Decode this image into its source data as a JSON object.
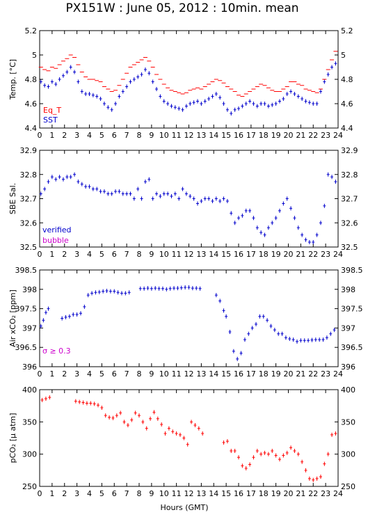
{
  "title": "PX151W : June 05, 2012 : 10min. mean",
  "xlabel": "Hours (GMT)",
  "colors": {
    "eq_t": "#ff0000",
    "sst": "#0000cc",
    "salinity": "#0000cc",
    "xco2": "#0000cc",
    "pco2": "#ff0000",
    "bubble": "#cc00cc",
    "axis": "#000000"
  },
  "chart_data": [
    {
      "id": "temp",
      "type": "scatter",
      "ylabel": "Temp. [°C]",
      "ylim": [
        4.4,
        5.2
      ],
      "yticks": [
        "4.4",
        "4.6",
        "4.8",
        "5",
        "5.2"
      ],
      "xlim": [
        0,
        24
      ],
      "xticks": [
        "0",
        "1",
        "2",
        "3",
        "4",
        "5",
        "6",
        "7",
        "8",
        "9",
        "10",
        "11",
        "12",
        "13",
        "14",
        "15",
        "16",
        "17",
        "18",
        "19",
        "20",
        "21",
        "22",
        "23",
        "24"
      ],
      "legend": [
        "Eq_T",
        "SST"
      ],
      "series": [
        {
          "name": "Eq_T",
          "marker": "dash",
          "color_key": "eq_t",
          "x": [
            0.1,
            0.4,
            0.7,
            1.0,
            1.3,
            1.6,
            1.9,
            2.2,
            2.5,
            2.8,
            3.1,
            3.4,
            3.7,
            4.0,
            4.3,
            4.6,
            4.9,
            5.2,
            5.5,
            5.8,
            6.1,
            6.4,
            6.7,
            7.0,
            7.3,
            7.6,
            7.9,
            8.2,
            8.5,
            8.8,
            9.1,
            9.4,
            9.7,
            10.0,
            10.3,
            10.6,
            10.9,
            11.2,
            11.5,
            11.8,
            12.1,
            12.4,
            12.7,
            13.0,
            13.3,
            13.6,
            13.9,
            14.2,
            14.5,
            14.8,
            15.1,
            15.4,
            15.7,
            16.0,
            16.3,
            16.6,
            16.9,
            17.2,
            17.5,
            17.8,
            18.1,
            18.4,
            18.7,
            19.0,
            19.3,
            19.6,
            19.9,
            20.2,
            20.5,
            20.8,
            21.1,
            21.4,
            21.7,
            22.0,
            22.3,
            22.6,
            22.9,
            23.2,
            23.5,
            23.8
          ],
          "y": [
            4.9,
            4.88,
            4.87,
            4.9,
            4.89,
            4.92,
            4.95,
            4.97,
            5.0,
            4.98,
            4.92,
            4.86,
            4.82,
            4.8,
            4.8,
            4.79,
            4.78,
            4.74,
            4.72,
            4.7,
            4.71,
            4.75,
            4.8,
            4.85,
            4.9,
            4.92,
            4.94,
            4.96,
            4.98,
            4.95,
            4.9,
            4.84,
            4.8,
            4.76,
            4.73,
            4.71,
            4.7,
            4.69,
            4.68,
            4.69,
            4.71,
            4.72,
            4.73,
            4.72,
            4.74,
            4.76,
            4.78,
            4.8,
            4.79,
            4.77,
            4.74,
            4.72,
            4.7,
            4.67,
            4.66,
            4.68,
            4.7,
            4.72,
            4.74,
            4.76,
            4.75,
            4.73,
            4.71,
            4.7,
            4.7,
            4.72,
            4.74,
            4.78,
            4.78,
            4.76,
            4.75,
            4.72,
            4.71,
            4.7,
            4.69,
            4.72,
            4.8,
            4.88,
            4.96,
            5.03
          ]
        },
        {
          "name": "SST",
          "marker": "plus",
          "color_key": "sst",
          "x": [
            0.1,
            0.4,
            0.7,
            1.0,
            1.3,
            1.6,
            1.9,
            2.2,
            2.5,
            2.8,
            3.1,
            3.4,
            3.7,
            4.0,
            4.3,
            4.6,
            4.9,
            5.2,
            5.5,
            5.8,
            6.1,
            6.4,
            6.7,
            7.0,
            7.3,
            7.6,
            7.9,
            8.2,
            8.5,
            8.8,
            9.1,
            9.4,
            9.7,
            10.0,
            10.3,
            10.6,
            10.9,
            11.2,
            11.5,
            11.8,
            12.1,
            12.4,
            12.7,
            13.0,
            13.3,
            13.6,
            13.9,
            14.2,
            14.5,
            14.8,
            15.1,
            15.4,
            15.7,
            16.0,
            16.3,
            16.6,
            16.9,
            17.2,
            17.5,
            17.8,
            18.1,
            18.4,
            18.7,
            19.0,
            19.3,
            19.6,
            19.9,
            20.2,
            20.5,
            20.8,
            21.1,
            21.4,
            21.7,
            22.0,
            22.3,
            22.6,
            22.9,
            23.2,
            23.5,
            23.8
          ],
          "y": [
            4.78,
            4.75,
            4.74,
            4.78,
            4.76,
            4.8,
            4.83,
            4.86,
            4.9,
            4.86,
            4.78,
            4.7,
            4.68,
            4.68,
            4.67,
            4.66,
            4.64,
            4.6,
            4.57,
            4.55,
            4.6,
            4.66,
            4.7,
            4.74,
            4.78,
            4.8,
            4.82,
            4.84,
            4.88,
            4.85,
            4.78,
            4.72,
            4.66,
            4.62,
            4.6,
            4.58,
            4.57,
            4.56,
            4.55,
            4.58,
            4.6,
            4.61,
            4.62,
            4.6,
            4.62,
            4.64,
            4.66,
            4.68,
            4.65,
            4.6,
            4.55,
            4.52,
            4.55,
            4.56,
            4.58,
            4.6,
            4.62,
            4.6,
            4.58,
            4.6,
            4.6,
            4.58,
            4.59,
            4.6,
            4.62,
            4.64,
            4.68,
            4.7,
            4.68,
            4.66,
            4.64,
            4.62,
            4.61,
            4.6,
            4.6,
            4.7,
            4.78,
            4.84,
            4.9,
            4.93
          ]
        }
      ]
    },
    {
      "id": "sal",
      "type": "scatter",
      "ylabel": "SBE Sal.",
      "ylim": [
        32.5,
        32.9
      ],
      "yticks": [
        "32.5",
        "32.6",
        "32.7",
        "32.8",
        "32.9"
      ],
      "xlim": [
        0,
        24
      ],
      "xticks": [
        "0",
        "1",
        "2",
        "3",
        "4",
        "5",
        "6",
        "7",
        "8",
        "9",
        "10",
        "11",
        "12",
        "13",
        "14",
        "15",
        "16",
        "17",
        "18",
        "19",
        "20",
        "21",
        "22",
        "23",
        "24"
      ],
      "legend": [
        "verified",
        "bubble"
      ],
      "series": [
        {
          "name": "verified",
          "marker": "plus",
          "color_key": "salinity",
          "x": [
            0.1,
            0.4,
            0.7,
            1.0,
            1.3,
            1.6,
            1.9,
            2.2,
            2.5,
            2.8,
            3.1,
            3.4,
            3.7,
            4.0,
            4.3,
            4.6,
            4.9,
            5.2,
            5.5,
            5.8,
            6.1,
            6.4,
            6.7,
            7.0,
            7.3,
            7.6,
            7.9,
            8.2,
            8.5,
            8.8,
            9.1,
            9.4,
            9.7,
            10.0,
            10.3,
            10.6,
            10.9,
            11.2,
            11.5,
            11.8,
            12.1,
            12.4,
            12.7,
            13.0,
            13.3,
            13.6,
            13.9,
            14.2,
            14.5,
            14.8,
            15.1,
            15.4,
            15.7,
            16.0,
            16.3,
            16.6,
            16.9,
            17.2,
            17.5,
            17.8,
            18.1,
            18.4,
            18.7,
            19.0,
            19.3,
            19.6,
            19.9,
            20.2,
            20.5,
            20.8,
            21.1,
            21.4,
            21.7,
            22.0,
            22.3,
            22.6,
            22.9,
            23.2,
            23.5,
            23.8
          ],
          "y": [
            32.72,
            32.74,
            32.77,
            32.79,
            32.78,
            32.79,
            32.78,
            32.79,
            32.79,
            32.8,
            32.77,
            32.76,
            32.75,
            32.75,
            32.74,
            32.74,
            32.73,
            32.73,
            32.72,
            32.72,
            32.73,
            32.73,
            32.72,
            32.72,
            32.72,
            32.7,
            32.74,
            32.7,
            32.77,
            32.78,
            32.7,
            32.72,
            32.71,
            32.72,
            32.72,
            32.71,
            32.72,
            32.7,
            32.74,
            32.72,
            32.71,
            32.7,
            32.68,
            32.69,
            32.7,
            32.7,
            32.69,
            32.7,
            32.69,
            32.7,
            32.69,
            32.64,
            32.6,
            32.62,
            32.63,
            32.65,
            32.65,
            32.62,
            32.58,
            32.56,
            32.55,
            32.58,
            32.6,
            32.62,
            32.65,
            32.68,
            32.7,
            32.66,
            32.62,
            32.58,
            32.55,
            32.53,
            32.52,
            32.52,
            32.55,
            32.6,
            32.67,
            32.8,
            32.79,
            32.77
          ]
        }
      ]
    },
    {
      "id": "xco2",
      "type": "scatter",
      "ylabel": "Air xCO₂ [ppm]",
      "ylim": [
        396,
        398.5
      ],
      "yticks": [
        "396",
        "396.5",
        "397",
        "397.5",
        "398",
        "398.5"
      ],
      "xlim": [
        0,
        24
      ],
      "xticks": [
        "0",
        "1",
        "2",
        "3",
        "4",
        "5",
        "6",
        "7",
        "8",
        "9",
        "10",
        "11",
        "12",
        "13",
        "14",
        "15",
        "16",
        "17",
        "18",
        "19",
        "20",
        "21",
        "22",
        "23",
        "24"
      ],
      "annotation": "σ ≥ 0.3",
      "series": [
        {
          "name": "",
          "marker": "plus",
          "color_key": "xco2",
          "x": [
            0.1,
            0.3,
            0.5,
            0.7,
            1.8,
            2.1,
            2.4,
            2.7,
            3.0,
            3.3,
            3.6,
            3.9,
            4.2,
            4.5,
            4.8,
            5.1,
            5.4,
            5.7,
            6.0,
            6.3,
            6.6,
            6.9,
            7.2,
            8.1,
            8.4,
            8.7,
            9.0,
            9.3,
            9.6,
            9.9,
            10.2,
            10.5,
            10.8,
            11.1,
            11.4,
            11.7,
            12.0,
            12.3,
            12.6,
            12.9,
            14.2,
            14.5,
            14.8,
            15.0,
            15.3,
            15.6,
            15.9,
            16.2,
            16.5,
            16.8,
            17.1,
            17.4,
            17.7,
            18.0,
            18.3,
            18.6,
            18.9,
            19.2,
            19.5,
            19.8,
            20.1,
            20.4,
            20.7,
            21.0,
            21.3,
            21.6,
            21.9,
            22.2,
            22.5,
            22.8,
            23.1,
            23.4,
            23.7
          ],
          "y": [
            397.05,
            397.2,
            397.4,
            397.5,
            397.25,
            397.28,
            397.3,
            397.35,
            397.35,
            397.38,
            397.55,
            397.85,
            397.9,
            397.92,
            397.93,
            397.95,
            397.96,
            397.95,
            397.95,
            397.92,
            397.9,
            397.9,
            397.92,
            398.02,
            398.02,
            398.03,
            398.02,
            398.03,
            398.02,
            398.02,
            398.0,
            398.02,
            398.03,
            398.03,
            398.04,
            398.05,
            398.05,
            398.03,
            398.03,
            398.02,
            397.85,
            397.7,
            397.45,
            397.3,
            396.9,
            396.4,
            396.2,
            396.35,
            396.7,
            396.85,
            397.0,
            397.1,
            397.3,
            397.3,
            397.2,
            397.05,
            396.95,
            396.85,
            396.85,
            396.75,
            396.72,
            396.7,
            396.65,
            396.68,
            396.68,
            396.68,
            396.69,
            396.7,
            396.7,
            396.7,
            396.75,
            396.85,
            396.95
          ]
        }
      ]
    },
    {
      "id": "pco2",
      "type": "scatter",
      "ylabel": "pCO₂ [μ atm]",
      "ylim": [
        250,
        400
      ],
      "yticks": [
        "250",
        "300",
        "350",
        "400"
      ],
      "xlim": [
        0,
        24
      ],
      "xticks": [
        "0",
        "1",
        "2",
        "3",
        "4",
        "5",
        "6",
        "7",
        "8",
        "9",
        "10",
        "11",
        "12",
        "13",
        "14",
        "15",
        "16",
        "17",
        "18",
        "19",
        "20",
        "21",
        "22",
        "23",
        "24"
      ],
      "series": [
        {
          "name": "",
          "marker": "plus",
          "color_key": "pco2",
          "x": [
            0.2,
            0.5,
            0.8,
            2.9,
            3.2,
            3.5,
            3.8,
            4.1,
            4.4,
            4.7,
            5.0,
            5.3,
            5.6,
            5.9,
            6.2,
            6.5,
            6.8,
            7.1,
            7.4,
            7.7,
            8.0,
            8.3,
            8.6,
            8.9,
            9.2,
            9.5,
            9.8,
            10.1,
            10.4,
            10.7,
            11.0,
            11.3,
            11.6,
            11.9,
            12.2,
            12.5,
            12.8,
            13.1,
            14.8,
            15.1,
            15.4,
            15.7,
            16.0,
            16.3,
            16.6,
            16.9,
            17.2,
            17.5,
            17.8,
            18.1,
            18.4,
            18.7,
            19.0,
            19.3,
            19.6,
            19.9,
            20.2,
            20.5,
            20.8,
            21.1,
            21.4,
            21.7,
            22.0,
            22.3,
            22.6,
            22.9,
            23.2,
            23.5,
            23.8
          ],
          "y": [
            384,
            386,
            388,
            382,
            381,
            380,
            379,
            379,
            378,
            376,
            372,
            360,
            357,
            356,
            360,
            364,
            350,
            345,
            353,
            364,
            360,
            350,
            340,
            355,
            365,
            355,
            346,
            332,
            340,
            335,
            332,
            330,
            325,
            315,
            350,
            345,
            340,
            332,
            318,
            320,
            305,
            305,
            295,
            282,
            278,
            284,
            295,
            305,
            300,
            302,
            300,
            305,
            298,
            292,
            298,
            302,
            310,
            305,
            300,
            288,
            275,
            262,
            260,
            262,
            265,
            285,
            300,
            330,
            332
          ]
        }
      ]
    }
  ]
}
